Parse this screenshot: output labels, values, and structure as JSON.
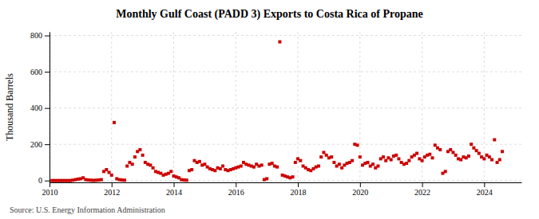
{
  "chart_data": {
    "type": "scatter",
    "title": "Monthly Gulf Coast (PADD 3) Exports to Costa Rica of Propane",
    "ylabel": "Thousand Barrels",
    "source": "Source: U.S. Energy Information Administration",
    "color": "#cc0000",
    "marker": "square",
    "grid": true,
    "xlim": [
      2010.0,
      2025.2
    ],
    "ylim": [
      -10,
      820
    ],
    "xticks": [
      2010,
      2012,
      2014,
      2016,
      2018,
      2020,
      2022,
      2024
    ],
    "yticks": [
      0,
      200,
      400,
      600,
      800
    ],
    "x": [
      2010.083,
      2010.167,
      2010.25,
      2010.333,
      2010.417,
      2010.5,
      2010.583,
      2010.667,
      2010.75,
      2010.833,
      2010.917,
      2011.0,
      2011.083,
      2011.167,
      2011.25,
      2011.333,
      2011.417,
      2011.5,
      2011.583,
      2011.667,
      2011.75,
      2011.833,
      2011.917,
      2012.0,
      2012.083,
      2012.167,
      2012.25,
      2012.333,
      2012.417,
      2012.5,
      2012.583,
      2012.667,
      2012.75,
      2012.833,
      2012.917,
      2013.0,
      2013.083,
      2013.167,
      2013.25,
      2013.333,
      2013.417,
      2013.5,
      2013.583,
      2013.667,
      2013.75,
      2013.833,
      2013.917,
      2014.0,
      2014.083,
      2014.167,
      2014.25,
      2014.333,
      2014.417,
      2014.5,
      2014.583,
      2014.667,
      2014.75,
      2014.833,
      2014.917,
      2015.0,
      2015.083,
      2015.167,
      2015.25,
      2015.333,
      2015.417,
      2015.5,
      2015.583,
      2015.667,
      2015.75,
      2015.833,
      2015.917,
      2016.0,
      2016.083,
      2016.167,
      2016.25,
      2016.333,
      2016.417,
      2016.5,
      2016.583,
      2016.667,
      2016.75,
      2016.833,
      2016.917,
      2017.0,
      2017.083,
      2017.167,
      2017.25,
      2017.333,
      2017.417,
      2017.5,
      2017.583,
      2017.667,
      2017.75,
      2017.833,
      2017.917,
      2018.0,
      2018.083,
      2018.167,
      2018.25,
      2018.333,
      2018.417,
      2018.5,
      2018.583,
      2018.667,
      2018.75,
      2018.833,
      2018.917,
      2019.0,
      2019.083,
      2019.167,
      2019.25,
      2019.333,
      2019.417,
      2019.5,
      2019.583,
      2019.667,
      2019.75,
      2019.833,
      2019.917,
      2020.0,
      2020.083,
      2020.167,
      2020.25,
      2020.333,
      2020.417,
      2020.5,
      2020.583,
      2020.667,
      2020.75,
      2020.833,
      2020.917,
      2021.0,
      2021.083,
      2021.167,
      2021.25,
      2021.333,
      2021.417,
      2021.5,
      2021.583,
      2021.667,
      2021.75,
      2021.833,
      2021.917,
      2022.0,
      2022.083,
      2022.167,
      2022.25,
      2022.333,
      2022.417,
      2022.5,
      2022.583,
      2022.667,
      2022.75,
      2022.833,
      2022.917,
      2023.0,
      2023.083,
      2023.167,
      2023.25,
      2023.333,
      2023.417,
      2023.5,
      2023.583,
      2023.667,
      2023.75,
      2023.833,
      2023.917,
      2024.0,
      2024.083,
      2024.167,
      2024.25,
      2024.333,
      2024.417,
      2024.5,
      2024.583
    ],
    "values": [
      0,
      0,
      0,
      0,
      0,
      0,
      0,
      0,
      2,
      5,
      8,
      10,
      15,
      5,
      3,
      2,
      1,
      2,
      3,
      5,
      50,
      60,
      45,
      30,
      320,
      10,
      5,
      3,
      2,
      80,
      100,
      90,
      130,
      160,
      170,
      140,
      100,
      90,
      85,
      70,
      50,
      45,
      40,
      30,
      35,
      40,
      50,
      25,
      20,
      15,
      5,
      3,
      2,
      55,
      60,
      110,
      100,
      105,
      85,
      90,
      75,
      65,
      60,
      55,
      70,
      65,
      80,
      60,
      55,
      60,
      65,
      70,
      75,
      80,
      100,
      90,
      85,
      80,
      75,
      90,
      80,
      85,
      5,
      10,
      90,
      95,
      80,
      75,
      765,
      30,
      25,
      20,
      15,
      20,
      100,
      120,
      110,
      80,
      70,
      60,
      55,
      65,
      75,
      80,
      130,
      155,
      140,
      125,
      130,
      100,
      80,
      90,
      70,
      85,
      95,
      100,
      110,
      200,
      195,
      130,
      85,
      95,
      100,
      80,
      90,
      70,
      80,
      120,
      130,
      110,
      125,
      115,
      135,
      140,
      120,
      100,
      90,
      95,
      110,
      130,
      140,
      150,
      120,
      110,
      130,
      140,
      145,
      125,
      195,
      180,
      170,
      40,
      50,
      160,
      170,
      155,
      140,
      120,
      115,
      130,
      125,
      135,
      200,
      180,
      165,
      150,
      130,
      120,
      140,
      130,
      115,
      225,
      100,
      115,
      160
    ]
  }
}
